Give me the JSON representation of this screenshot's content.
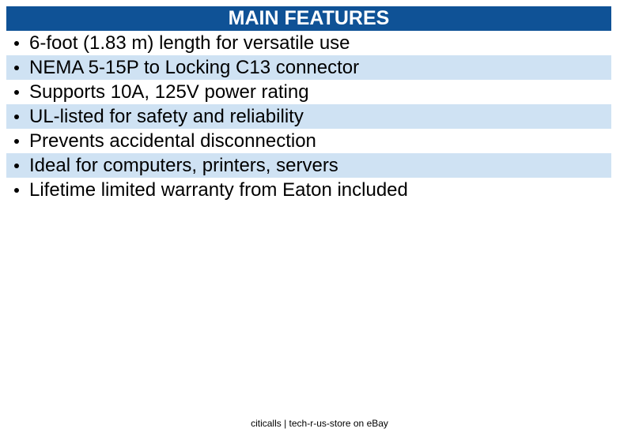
{
  "header": {
    "title": "MAIN FEATURES"
  },
  "items": [
    "6-foot (1.83 m) length for versatile use",
    "NEMA 5-15P to Locking C13 connector",
    "Supports 10A, 125V power rating",
    "UL-listed for safety and reliability",
    "Prevents accidental disconnection",
    "Ideal for computers, printers, servers",
    "Lifetime limited warranty from Eaton included"
  ],
  "footer": "citicalls | tech-r-us-store on eBay"
}
